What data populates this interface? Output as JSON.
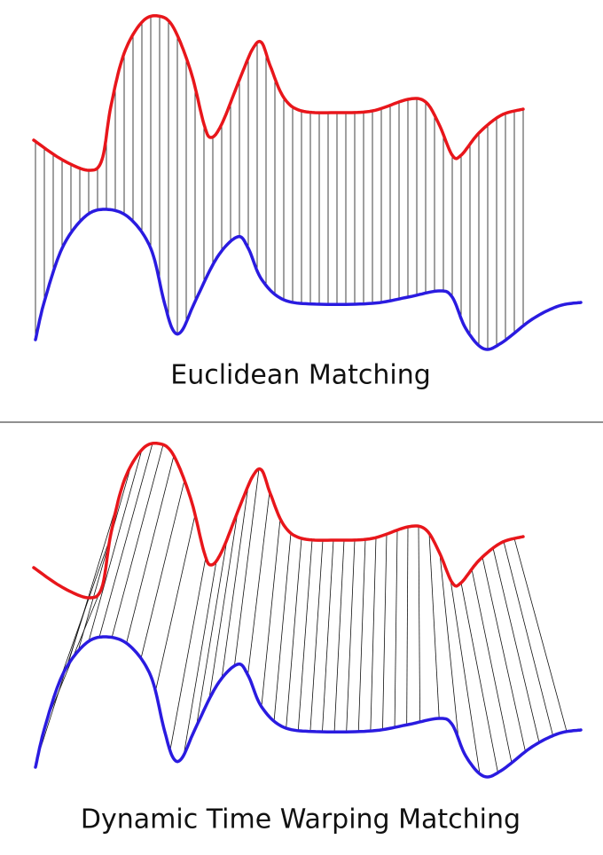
{
  "euclidean": {
    "caption": "Euclidean Matching"
  },
  "dtw": {
    "caption": "Dynamic Time Warping Matching"
  }
}
